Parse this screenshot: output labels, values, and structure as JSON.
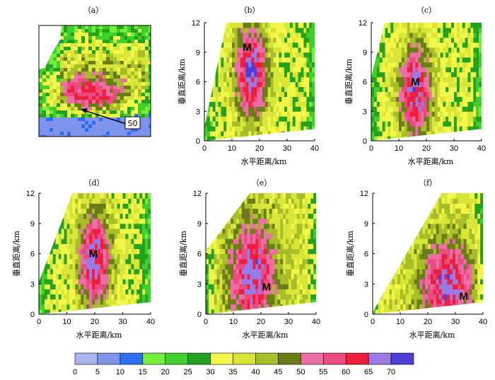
{
  "chart_data": [
    {
      "panel": "(a)",
      "type": "heatmap",
      "subtitle": "（a）",
      "annotations": [
        "S0"
      ]
    },
    {
      "panel": "(b)",
      "type": "heatmap",
      "subtitle": "（b）",
      "xlabel": "水平距离/km",
      "ylabel": "垂直距离/km",
      "xlim": [
        0,
        40
      ],
      "ylim": [
        0,
        12
      ],
      "xticks": [
        "0",
        "10",
        "20",
        "30",
        "40"
      ],
      "yticks": [
        "0",
        "3",
        "6",
        "9",
        "12"
      ],
      "annotations": [
        {
          "text": "M",
          "x": 15.5,
          "y": 9.5
        }
      ]
    },
    {
      "panel": "(c)",
      "type": "heatmap",
      "subtitle": "（c）",
      "xlabel": "水平距离/km",
      "ylabel": "垂直距离/km",
      "xlim": [
        0,
        40
      ],
      "ylim": [
        0,
        12
      ],
      "xticks": [
        "0",
        "10",
        "20",
        "30",
        "40"
      ],
      "yticks": [
        "0",
        "3",
        "6",
        "9",
        "12"
      ],
      "annotations": [
        {
          "text": "M",
          "x": 16,
          "y": 6
        }
      ]
    },
    {
      "panel": "(d)",
      "type": "heatmap",
      "subtitle": "（d）",
      "xlabel": "水平距离/km",
      "ylabel": "垂直距离/km",
      "xlim": [
        0,
        40
      ],
      "ylim": [
        0,
        12
      ],
      "xticks": [
        "0",
        "10",
        "20",
        "30",
        "40"
      ],
      "yticks": [
        "0",
        "3",
        "6",
        "9",
        "12"
      ],
      "annotations": [
        {
          "text": "M",
          "x": 19.5,
          "y": 6
        }
      ]
    },
    {
      "panel": "(e)",
      "type": "heatmap",
      "subtitle": "（e）",
      "xlabel": "水平距离/km",
      "ylabel": "垂直距离/km",
      "xlim": [
        0,
        40
      ],
      "ylim": [
        0,
        12
      ],
      "xticks": [
        "0",
        "10",
        "20",
        "30",
        "40"
      ],
      "yticks": [
        "0",
        "3",
        "6",
        "9",
        "12"
      ],
      "annotations": [
        {
          "text": "M",
          "x": 22,
          "y": 2.7
        }
      ]
    },
    {
      "panel": "(f)",
      "type": "heatmap",
      "subtitle": "（f）",
      "xlabel": "水平距离/km",
      "ylabel": "垂直距离/km",
      "xlim": [
        0,
        40
      ],
      "ylim": [
        0,
        12
      ],
      "xticks": [
        "0",
        "10",
        "20",
        "30",
        "40"
      ],
      "yticks": [
        "0",
        "3",
        "6",
        "9",
        "12"
      ],
      "annotations": [
        {
          "text": "M",
          "x": 33,
          "y": 1.8
        }
      ]
    }
  ],
  "colorbar": {
    "ticks": [
      "0",
      "5",
      "10",
      "15",
      "20",
      "25",
      "30",
      "35",
      "40",
      "45",
      "50",
      "55",
      "60",
      "65",
      "70"
    ],
    "colors": [
      "#aab4ee",
      "#7d93ec",
      "#2d6ff0",
      "#74f03c",
      "#3fd02b",
      "#24a21f",
      "#f2f74a",
      "#d8e637",
      "#a8be28",
      "#6c7c17",
      "#ec6ea6",
      "#ea4c82",
      "#ee1e3c",
      "#9b7ae6",
      "#4e3fd8"
    ]
  }
}
